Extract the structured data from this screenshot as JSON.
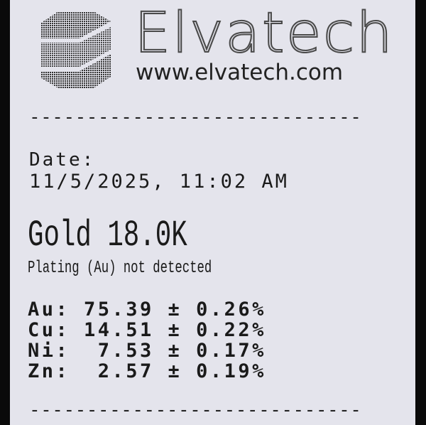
{
  "header": {
    "brand": "Elvatech",
    "url": "www.elvatech.com",
    "logo_icon": "elvatech-hexagon-stripes-logo"
  },
  "separator": "-----------------------------",
  "date": {
    "label": "Date:",
    "value": "11/5/2025, 11:02 AM"
  },
  "result": {
    "alloy": "Gold 18.0K",
    "plating": "Plating (Au) not detected"
  },
  "elements": [
    {
      "line": "Au: 75.39 ± 0.26%",
      "symbol": "Au",
      "value": "75.39",
      "error": "0.26%"
    },
    {
      "line": "Cu: 14.51 ± 0.22%",
      "symbol": "Cu",
      "value": "14.51",
      "error": "0.22%"
    },
    {
      "line": "Ni:  7.53 ± 0.17%",
      "symbol": "Ni",
      "value": "7.53",
      "error": "0.17%"
    },
    {
      "line": "Zn:  2.57 ± 0.19%",
      "symbol": "Zn",
      "value": "2.57",
      "error": "0.19%"
    }
  ]
}
